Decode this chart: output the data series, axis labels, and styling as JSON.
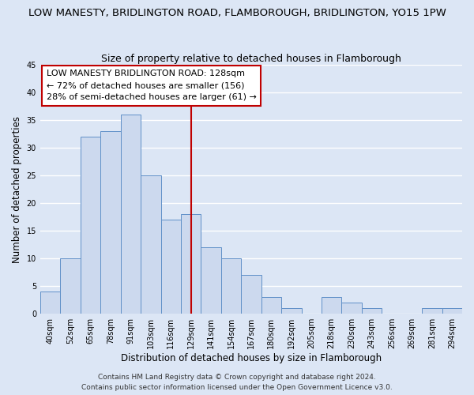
{
  "title": "LOW MANESTY, BRIDLINGTON ROAD, FLAMBOROUGH, BRIDLINGTON, YO15 1PW",
  "subtitle": "Size of property relative to detached houses in Flamborough",
  "xlabel": "Distribution of detached houses by size in Flamborough",
  "ylabel": "Number of detached properties",
  "bin_labels": [
    "40sqm",
    "52sqm",
    "65sqm",
    "78sqm",
    "91sqm",
    "103sqm",
    "116sqm",
    "129sqm",
    "141sqm",
    "154sqm",
    "167sqm",
    "180sqm",
    "192sqm",
    "205sqm",
    "218sqm",
    "230sqm",
    "243sqm",
    "256sqm",
    "269sqm",
    "281sqm",
    "294sqm"
  ],
  "bar_heights": [
    4,
    10,
    32,
    33,
    36,
    25,
    17,
    18,
    12,
    10,
    7,
    3,
    1,
    0,
    3,
    2,
    1,
    0,
    0,
    1,
    1
  ],
  "bar_color": "#ccd9ee",
  "bar_edge_color": "#6090c8",
  "reference_line_x": 7,
  "annotation_line1": "LOW MANESTY BRIDLINGTON ROAD: 128sqm",
  "annotation_line2": "← 72% of detached houses are smaller (156)",
  "annotation_line3": "28% of semi-detached houses are larger (61) →",
  "annotation_box_color": "white",
  "annotation_box_edge_color": "#c00000",
  "ylim": [
    0,
    45
  ],
  "yticks": [
    0,
    5,
    10,
    15,
    20,
    25,
    30,
    35,
    40,
    45
  ],
  "footer_line1": "Contains HM Land Registry data © Crown copyright and database right 2024.",
  "footer_line2": "Contains public sector information licensed under the Open Government Licence v3.0.",
  "bg_color": "#dce6f5",
  "plot_bg_color": "#dce6f5",
  "grid_color": "white",
  "title_fontsize": 9.5,
  "subtitle_fontsize": 9,
  "axis_label_fontsize": 8.5,
  "tick_fontsize": 7,
  "annotation_fontsize": 8,
  "footer_fontsize": 6.5
}
